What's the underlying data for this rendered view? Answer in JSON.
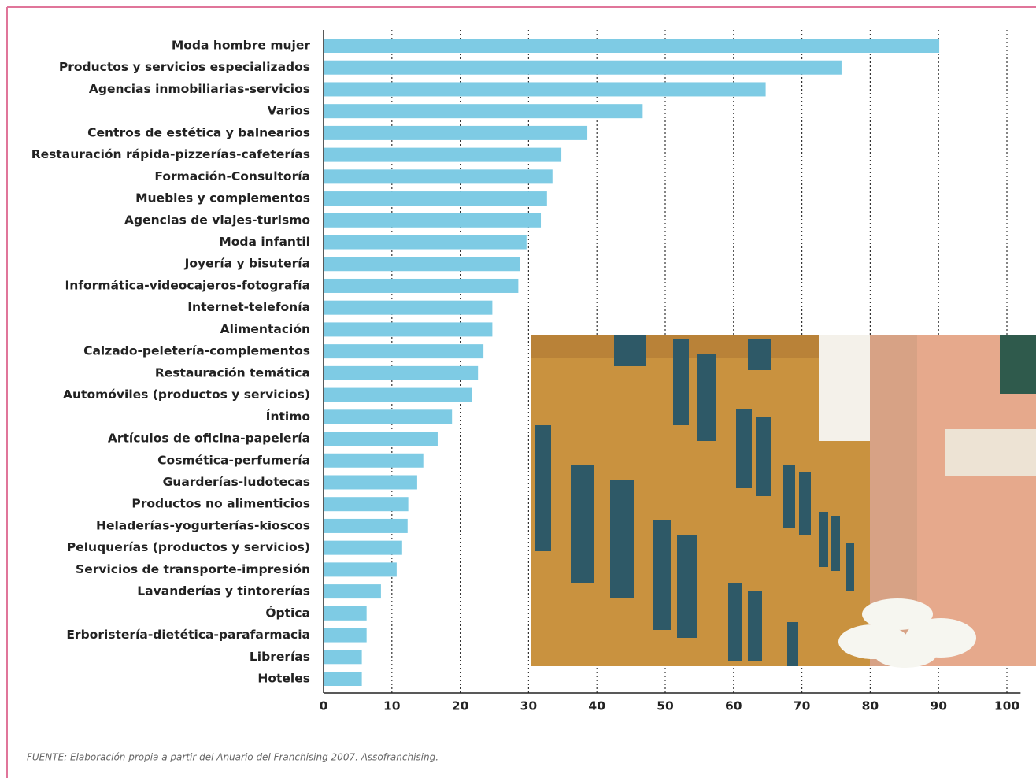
{
  "chart_data": {
    "type": "bar",
    "orientation": "horizontal",
    "categories": [
      "Moda hombre mujer",
      "Productos y servicios especializados",
      "Agencias inmobiliarias-servicios",
      "Varios",
      "Centros de estética y balnearios",
      "Restauración rápida-pizzerías-cafeterías",
      "Formación-Consultoría",
      "Muebles y complementos",
      "Agencias de viajes-turismo",
      "Moda infantil",
      "Joyería y bisutería",
      "Informática-videocajeros-fotografía",
      "Internet-telefonía",
      "Alimentación",
      "Calzado-peletería-complementos",
      "Restauración temática",
      "Automóviles (productos y servicios)",
      "Íntimo",
      "Artículos de oficina-papelería",
      "Cosmética-perfumería",
      "Guarderías-ludotecas",
      "Productos no alimenticios",
      "Heladerías-yogurterías-kioscos",
      "Peluquerías (productos y servicios)",
      "Servicios de transporte-impresión",
      "Lavanderías y tintorerías",
      "Óptica",
      "Erboristería-dietética-parafarmacia",
      "Librerías",
      "Hoteles"
    ],
    "values": [
      90.1,
      75.8,
      64.7,
      46.7,
      38.6,
      34.8,
      33.5,
      32.7,
      31.8,
      29.7,
      28.7,
      28.5,
      24.7,
      24.7,
      23.4,
      22.6,
      21.7,
      18.8,
      16.7,
      14.6,
      13.7,
      12.4,
      12.3,
      11.5,
      10.7,
      8.4,
      6.3,
      6.3,
      5.6,
      5.6
    ],
    "color": "#7ecbe4",
    "xlim": [
      0,
      102
    ],
    "xticks": [
      0,
      10,
      20,
      30,
      40,
      50,
      60,
      70,
      80,
      90,
      100
    ],
    "grid": true,
    "source": "FUENTE: Elaboración propia a partir del Anuario del Franchising 2007. Assofranchising."
  }
}
